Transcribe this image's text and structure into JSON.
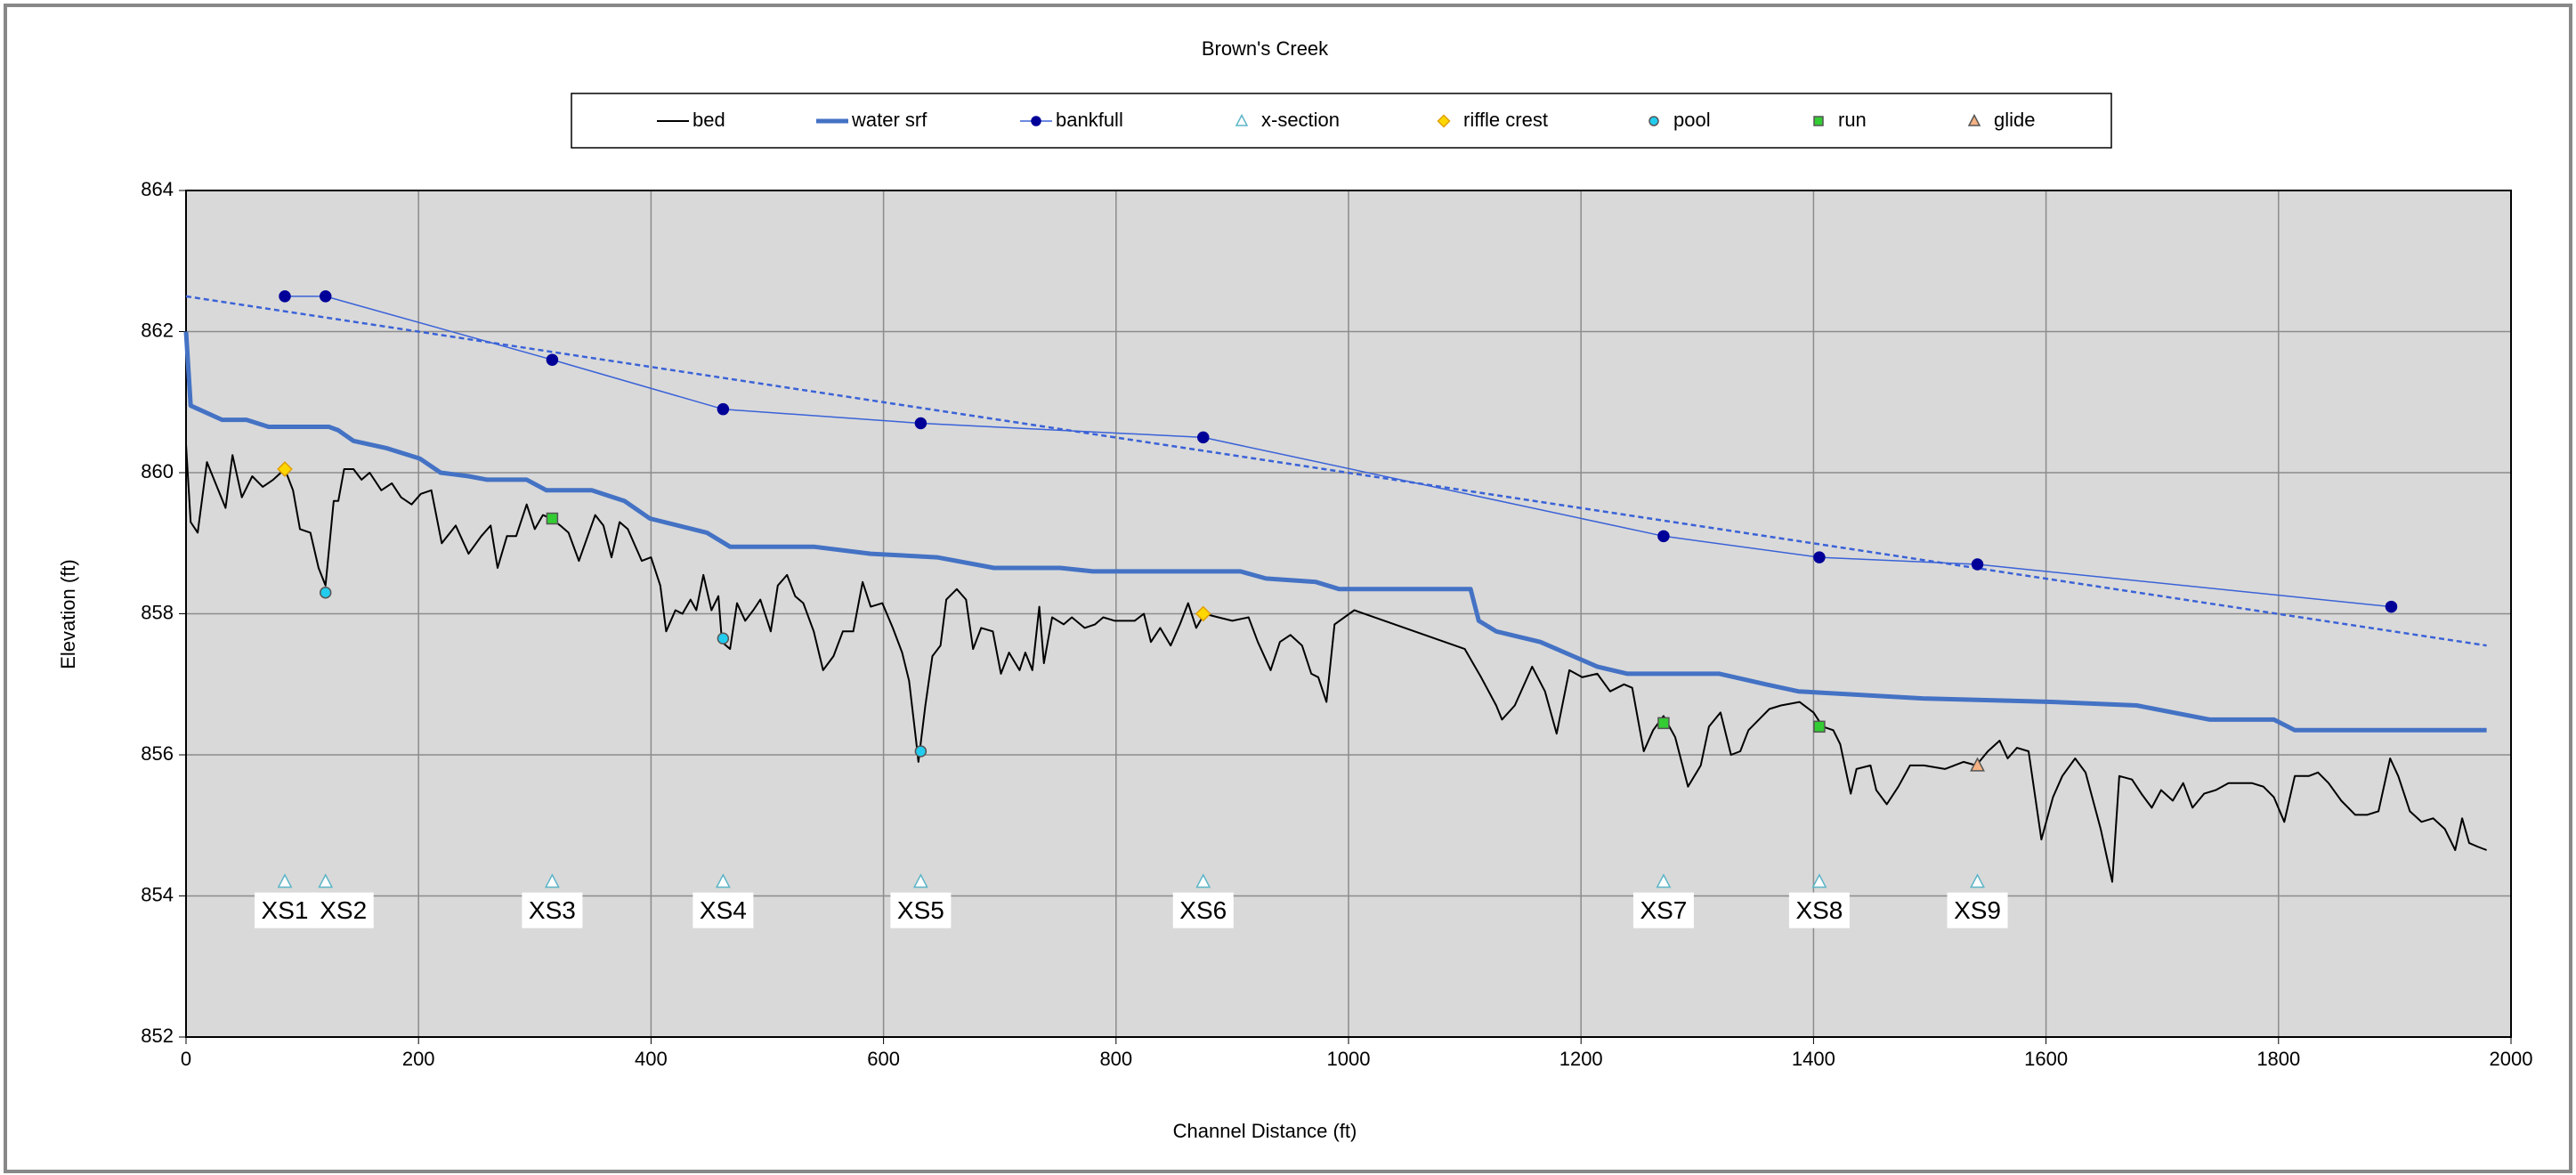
{
  "chart_data": {
    "type": "line",
    "title": "Brown's Creek",
    "xlabel": "Channel Distance (ft)",
    "ylabel": "Elevation (ft)",
    "xlim": [
      0,
      2000
    ],
    "xticks": [
      0,
      200,
      400,
      600,
      800,
      1000,
      1200,
      1400,
      1600,
      1800,
      2000
    ],
    "ylim": [
      852,
      864
    ],
    "yticks": [
      852,
      854,
      856,
      858,
      860,
      862,
      864
    ],
    "grid": true,
    "legend": "top",
    "series": [
      {
        "name": "bed",
        "color": "#000000",
        "line_width": 2,
        "marker": null,
        "x": [
          0,
          4,
          10,
          18,
          34,
          40,
          48,
          57,
          66,
          75,
          85,
          92,
          98,
          107,
          114,
          120,
          127,
          131,
          136,
          144,
          151,
          158,
          168,
          177,
          185,
          194,
          202,
          211,
          220,
          232,
          243,
          254,
          262,
          268,
          276,
          284,
          293,
          300,
          307,
          314,
          322,
          329,
          338,
          352,
          359,
          366,
          373,
          380,
          392,
          400,
          408,
          413,
          421,
          427,
          434,
          439,
          445,
          452,
          458,
          461,
          468,
          474,
          481,
          488,
          494,
          503,
          509,
          517,
          524,
          531,
          540,
          548,
          557,
          565,
          574,
          582,
          589,
          599,
          608,
          616,
          622,
          628,
          630,
          636,
          642,
          649,
          654,
          663,
          671,
          677,
          684,
          694,
          701,
          708,
          717,
          722,
          728,
          734,
          738,
          745,
          755,
          762,
          773,
          782,
          789,
          799,
          807,
          816,
          824,
          830,
          838,
          847,
          855,
          862,
          869,
          876,
          888,
          900,
          914,
          922,
          933,
          941,
          950,
          960,
          968,
          974,
          981,
          988,
          1005,
          1100,
          1114,
          1127,
          1132,
          1143,
          1158,
          1169,
          1179,
          1190,
          1201,
          1214,
          1225,
          1237,
          1244,
          1254,
          1262,
          1271,
          1281,
          1292,
          1303,
          1310,
          1320,
          1329,
          1337,
          1344,
          1353,
          1362,
          1372,
          1388,
          1400,
          1408,
          1417,
          1423,
          1432,
          1437,
          1449,
          1454,
          1463,
          1473,
          1483,
          1495,
          1513,
          1529,
          1540,
          1550,
          1560,
          1567,
          1575,
          1585,
          1596,
          1606,
          1614,
          1625,
          1634,
          1647,
          1657,
          1663,
          1674,
          1682,
          1691,
          1699,
          1709,
          1718,
          1726,
          1736,
          1746,
          1757,
          1777,
          1787,
          1796,
          1805,
          1814,
          1826,
          1834,
          1843,
          1854,
          1866,
          1876,
          1886,
          1896,
          1903,
          1913,
          1923,
          1933,
          1943,
          1952,
          1958,
          1964,
          1971,
          1979
        ],
        "values": [
          860.4,
          859.3,
          859.15,
          860.15,
          859.5,
          860.25,
          859.65,
          859.95,
          859.8,
          859.9,
          860.05,
          859.75,
          859.2,
          859.15,
          858.65,
          858.4,
          859.6,
          859.6,
          860.05,
          860.05,
          859.9,
          860,
          859.75,
          859.85,
          859.65,
          859.55,
          859.7,
          859.75,
          859,
          859.25,
          858.85,
          859.1,
          859.25,
          858.65,
          859.1,
          859.1,
          859.55,
          859.2,
          859.4,
          859.35,
          859.25,
          859.15,
          858.75,
          859.4,
          859.25,
          858.8,
          859.3,
          859.2,
          858.75,
          858.8,
          858.4,
          857.75,
          858.05,
          858,
          858.2,
          858.05,
          858.55,
          858.05,
          858.25,
          857.6,
          857.5,
          858.15,
          857.9,
          858.05,
          858.2,
          857.75,
          858.4,
          858.55,
          858.25,
          858.15,
          857.75,
          857.2,
          857.4,
          857.75,
          857.75,
          858.45,
          858.1,
          858.15,
          857.8,
          857.45,
          857.05,
          856.2,
          855.9,
          856.7,
          857.4,
          857.55,
          858.2,
          858.35,
          858.2,
          857.5,
          857.8,
          857.75,
          857.15,
          857.45,
          857.2,
          857.45,
          857.2,
          858.1,
          857.3,
          857.95,
          857.85,
          857.95,
          857.8,
          857.85,
          857.95,
          857.9,
          857.9,
          857.9,
          858,
          857.6,
          857.8,
          857.55,
          857.85,
          858.15,
          857.8,
          858,
          857.95,
          857.9,
          857.95,
          857.6,
          857.2,
          857.6,
          857.7,
          857.55,
          857.15,
          857.1,
          856.75,
          857.85,
          858.05,
          857.5,
          857.1,
          856.7,
          856.5,
          856.7,
          857.25,
          856.9,
          856.3,
          857.2,
          857.1,
          857.15,
          856.9,
          857,
          856.95,
          856.05,
          856.35,
          856.55,
          856.25,
          855.55,
          855.85,
          856.4,
          856.6,
          856,
          856.05,
          856.35,
          856.5,
          856.65,
          856.7,
          856.75,
          856.6,
          856.4,
          856.35,
          856.15,
          855.45,
          855.8,
          855.85,
          855.5,
          855.3,
          855.55,
          855.85,
          855.85,
          855.8,
          855.9,
          855.85,
          856.05,
          856.2,
          855.95,
          856.1,
          856.05,
          854.8,
          855.4,
          855.7,
          855.95,
          855.75,
          854.95,
          854.2,
          855.7,
          855.65,
          855.45,
          855.25,
          855.5,
          855.35,
          855.6,
          855.25,
          855.45,
          855.5,
          855.6,
          855.6,
          855.55,
          855.4,
          855.05,
          855.7,
          855.7,
          855.75,
          855.6,
          855.35,
          855.15,
          855.15,
          855.2,
          855.95,
          855.7,
          855.2,
          855.05,
          855.1,
          854.95,
          854.65,
          855.1,
          854.75,
          854.7,
          854.65
        ]
      },
      {
        "name": "water srf",
        "color": "#4472c4",
        "line_width": 5,
        "marker": null,
        "x": [
          0,
          4,
          31,
          52,
          71,
          123,
          131,
          144,
          172,
          201,
          219,
          243,
          259,
          293,
          310,
          349,
          377,
          399,
          448,
          468,
          540,
          589,
          646,
          695,
          752,
          780,
          907,
          929,
          972,
          992,
          1105,
          1112,
          1127,
          1165,
          1214,
          1240,
          1319,
          1359,
          1387,
          1494,
          1607,
          1678,
          1741,
          1796,
          1814,
          1848,
          1979
        ],
        "values": [
          862,
          860.95,
          860.75,
          860.75,
          860.65,
          860.65,
          860.6,
          860.45,
          860.35,
          860.2,
          860,
          859.95,
          859.9,
          859.9,
          859.75,
          859.75,
          859.6,
          859.35,
          859.15,
          858.95,
          858.95,
          858.85,
          858.8,
          858.65,
          858.65,
          858.6,
          858.6,
          858.5,
          858.45,
          858.35,
          858.35,
          857.9,
          857.75,
          857.6,
          857.25,
          857.15,
          857.15,
          857,
          856.9,
          856.8,
          856.75,
          856.7,
          856.5,
          856.5,
          856.35,
          856.35,
          856.35
        ]
      },
      {
        "name": "bankfull",
        "color": "#3a62d8",
        "marker_color": "#000099",
        "line_width": 1.5,
        "marker": "circle",
        "x": [
          85,
          120,
          315,
          462,
          632,
          875,
          1271,
          1405,
          1541,
          1897
        ],
        "values": [
          862.5,
          862.5,
          861.6,
          860.9,
          860.7,
          860.5,
          859.1,
          858.8,
          858.7,
          858.1
        ]
      },
      {
        "name": "x-section",
        "color": "#5bb5c8",
        "marker": "triangle",
        "line_width": 0,
        "hollow": true,
        "x": [
          85,
          120,
          315,
          462,
          632,
          875,
          1271,
          1405,
          1541
        ],
        "values": [
          854.2,
          854.2,
          854.2,
          854.2,
          854.2,
          854.2,
          854.2,
          854.2,
          854.2
        ],
        "labels": [
          "XS1",
          "XS2",
          "XS3",
          "XS4",
          "XS5",
          "XS6",
          "XS7",
          "XS8",
          "XS9"
        ]
      },
      {
        "name": "riffle crest",
        "color": "#ffd700",
        "marker": "diamond",
        "line_width": 0,
        "x": [
          85,
          875
        ],
        "values": [
          860.05,
          858
        ]
      },
      {
        "name": "pool",
        "color": "#22ccee",
        "marker": "circle",
        "line_width": 0,
        "x": [
          120,
          462,
          632
        ],
        "values": [
          858.3,
          857.65,
          856.05
        ]
      },
      {
        "name": "run",
        "color": "#33cc33",
        "marker": "square",
        "line_width": 0,
        "x": [
          315,
          1271,
          1405
        ],
        "values": [
          859.35,
          856.45,
          856.4
        ]
      },
      {
        "name": "glide",
        "color": "#f4b183",
        "marker": "triangle",
        "line_width": 0,
        "x": [
          1541
        ],
        "values": [
          855.85
        ]
      }
    ],
    "trendline": {
      "color": "#3a62d8",
      "dashed": true,
      "x": [
        0,
        1979
      ],
      "values": [
        862.5,
        857.55
      ]
    }
  }
}
